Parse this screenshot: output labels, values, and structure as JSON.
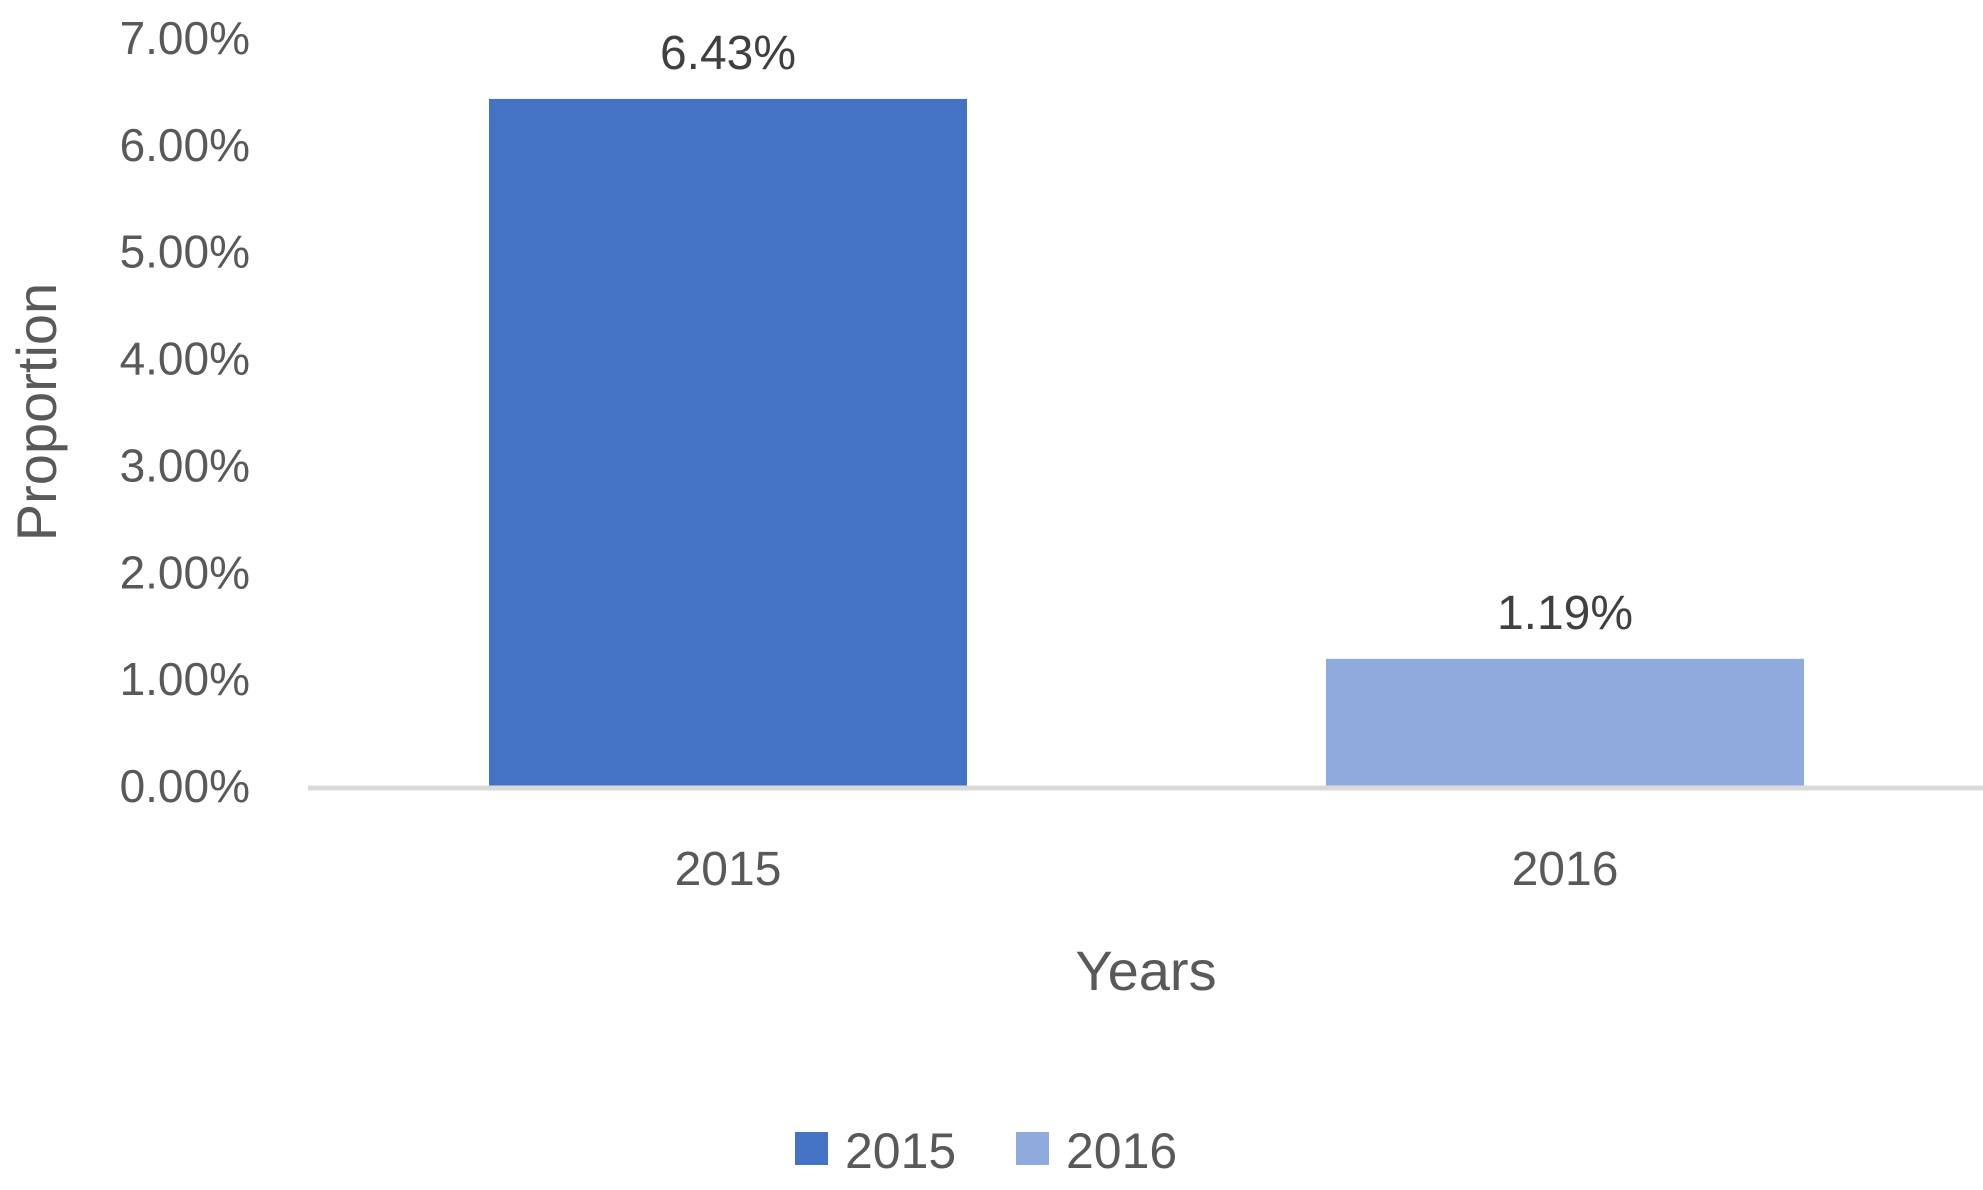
{
  "chart_data": {
    "type": "bar",
    "title": "",
    "xlabel": "Years",
    "ylabel": "Proportion",
    "categories": [
      "2015",
      "2016"
    ],
    "values": [
      6.43,
      1.19
    ],
    "data_labels": [
      "6.43%",
      "1.19%"
    ],
    "colors": [
      "#4472C4",
      "#8FAADC"
    ],
    "ylim": [
      0,
      7
    ],
    "yticks": [
      0,
      1,
      2,
      3,
      4,
      5,
      6,
      7
    ],
    "ytick_labels": [
      "0.00%",
      "1.00%",
      "2.00%",
      "3.00%",
      "4.00%",
      "5.00%",
      "6.00%",
      "7.00%"
    ],
    "axis_color": "#D9D9D9",
    "grid": false,
    "legend": {
      "position": "bottom",
      "entries": [
        {
          "label": "2015",
          "color": "#4472C4"
        },
        {
          "label": "2016",
          "color": "#8FAADC"
        }
      ]
    }
  }
}
